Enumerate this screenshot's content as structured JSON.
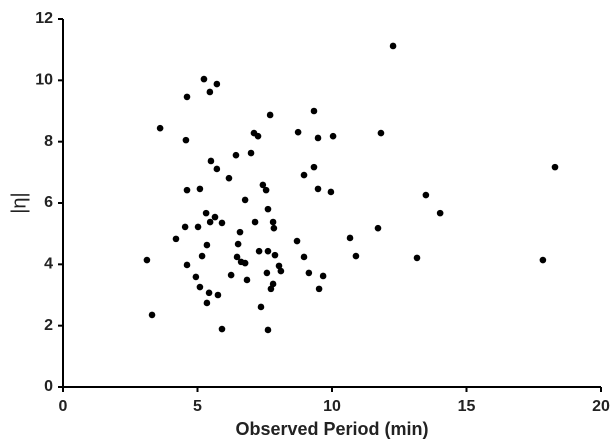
{
  "chart_data": {
    "type": "scatter",
    "x_label": "Observed Period (min)",
    "y_label": "|η|",
    "color": "#000000",
    "x": [
      12.27,
      5.24,
      5.72,
      5.46,
      4.61,
      9.33,
      3.61,
      7.7,
      7.1,
      7.25,
      8.74,
      10.04,
      9.48,
      11.82,
      4.57,
      6.43,
      6.99,
      5.5,
      5.72,
      9.33,
      18.29,
      8.96,
      6.17,
      7.43,
      7.55,
      4.61,
      5.09,
      9.48,
      9.96,
      13.49,
      6.77,
      14.02,
      7.62,
      5.32,
      5.65,
      5.47,
      5.91,
      7.81,
      7.14,
      4.54,
      5.02,
      7.84,
      11.71,
      6.58,
      10.67,
      4.2,
      8.7,
      5.35,
      6.51,
      7.29,
      7.62,
      10.89,
      8.96,
      6.47,
      7.88,
      3.12,
      13.16,
      17.84,
      4.61,
      6.62,
      6.77,
      5.17,
      8.03,
      8.1,
      7.58,
      9.14,
      6.25,
      9.67,
      4.94,
      6.84,
      7.81,
      5.09,
      7.73,
      9.52,
      5.43,
      5.76,
      5.35,
      7.36,
      3.31,
      5.91,
      7.62
    ],
    "values": [
      11.12,
      10.04,
      9.88,
      9.62,
      9.46,
      9.0,
      8.44,
      8.87,
      8.28,
      8.18,
      8.31,
      8.18,
      8.12,
      8.28,
      8.05,
      7.56,
      7.63,
      7.37,
      7.11,
      7.17,
      7.17,
      6.91,
      6.81,
      6.59,
      6.42,
      6.42,
      6.46,
      6.46,
      6.36,
      6.26,
      6.1,
      5.67,
      5.8,
      5.67,
      5.54,
      5.38,
      5.35,
      5.38,
      5.38,
      5.22,
      5.22,
      5.18,
      5.18,
      5.05,
      4.86,
      4.83,
      4.76,
      4.63,
      4.66,
      4.43,
      4.43,
      4.27,
      4.24,
      4.24,
      4.3,
      4.14,
      4.21,
      4.14,
      3.98,
      4.08,
      4.04,
      4.27,
      3.95,
      3.78,
      3.72,
      3.72,
      3.65,
      3.62,
      3.59,
      3.49,
      3.36,
      3.26,
      3.2,
      3.2,
      3.07,
      3.0,
      2.74,
      2.61,
      2.35,
      1.89,
      1.86
    ],
    "xlim": [
      0,
      20
    ],
    "ylim": [
      0,
      12
    ],
    "xticks": [
      0,
      5,
      10,
      15,
      20
    ],
    "yticks": [
      0,
      2,
      4,
      6,
      8,
      10,
      12
    ]
  }
}
